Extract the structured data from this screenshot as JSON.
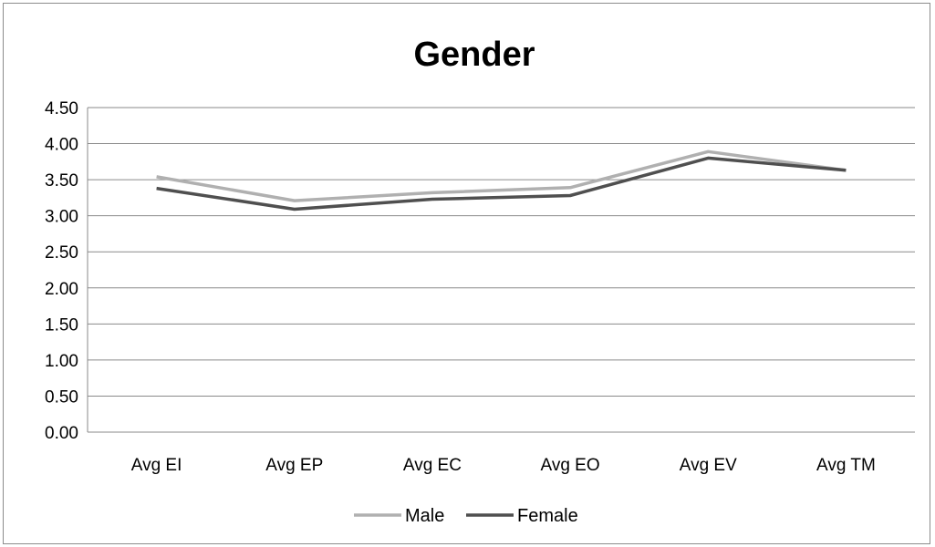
{
  "chart_data": {
    "type": "line",
    "title": "Gender",
    "xlabel": "",
    "ylabel": "",
    "categories": [
      "Avg EI",
      "Avg EP",
      "Avg EC",
      "Avg EO",
      "Avg EV",
      "Avg TM"
    ],
    "y_ticks": [
      "0.00",
      "0.50",
      "1.00",
      "1.50",
      "2.00",
      "2.50",
      "3.00",
      "3.50",
      "4.00",
      "4.50"
    ],
    "ylim": [
      0,
      4.5
    ],
    "grid": true,
    "legend_position": "bottom",
    "series": [
      {
        "name": "Male",
        "color": "#b0b0b0",
        "values": [
          3.54,
          3.21,
          3.32,
          3.39,
          3.89,
          3.63
        ]
      },
      {
        "name": "Female",
        "color": "#4f4f4f",
        "values": [
          3.38,
          3.09,
          3.23,
          3.28,
          3.8,
          3.63
        ]
      }
    ]
  }
}
